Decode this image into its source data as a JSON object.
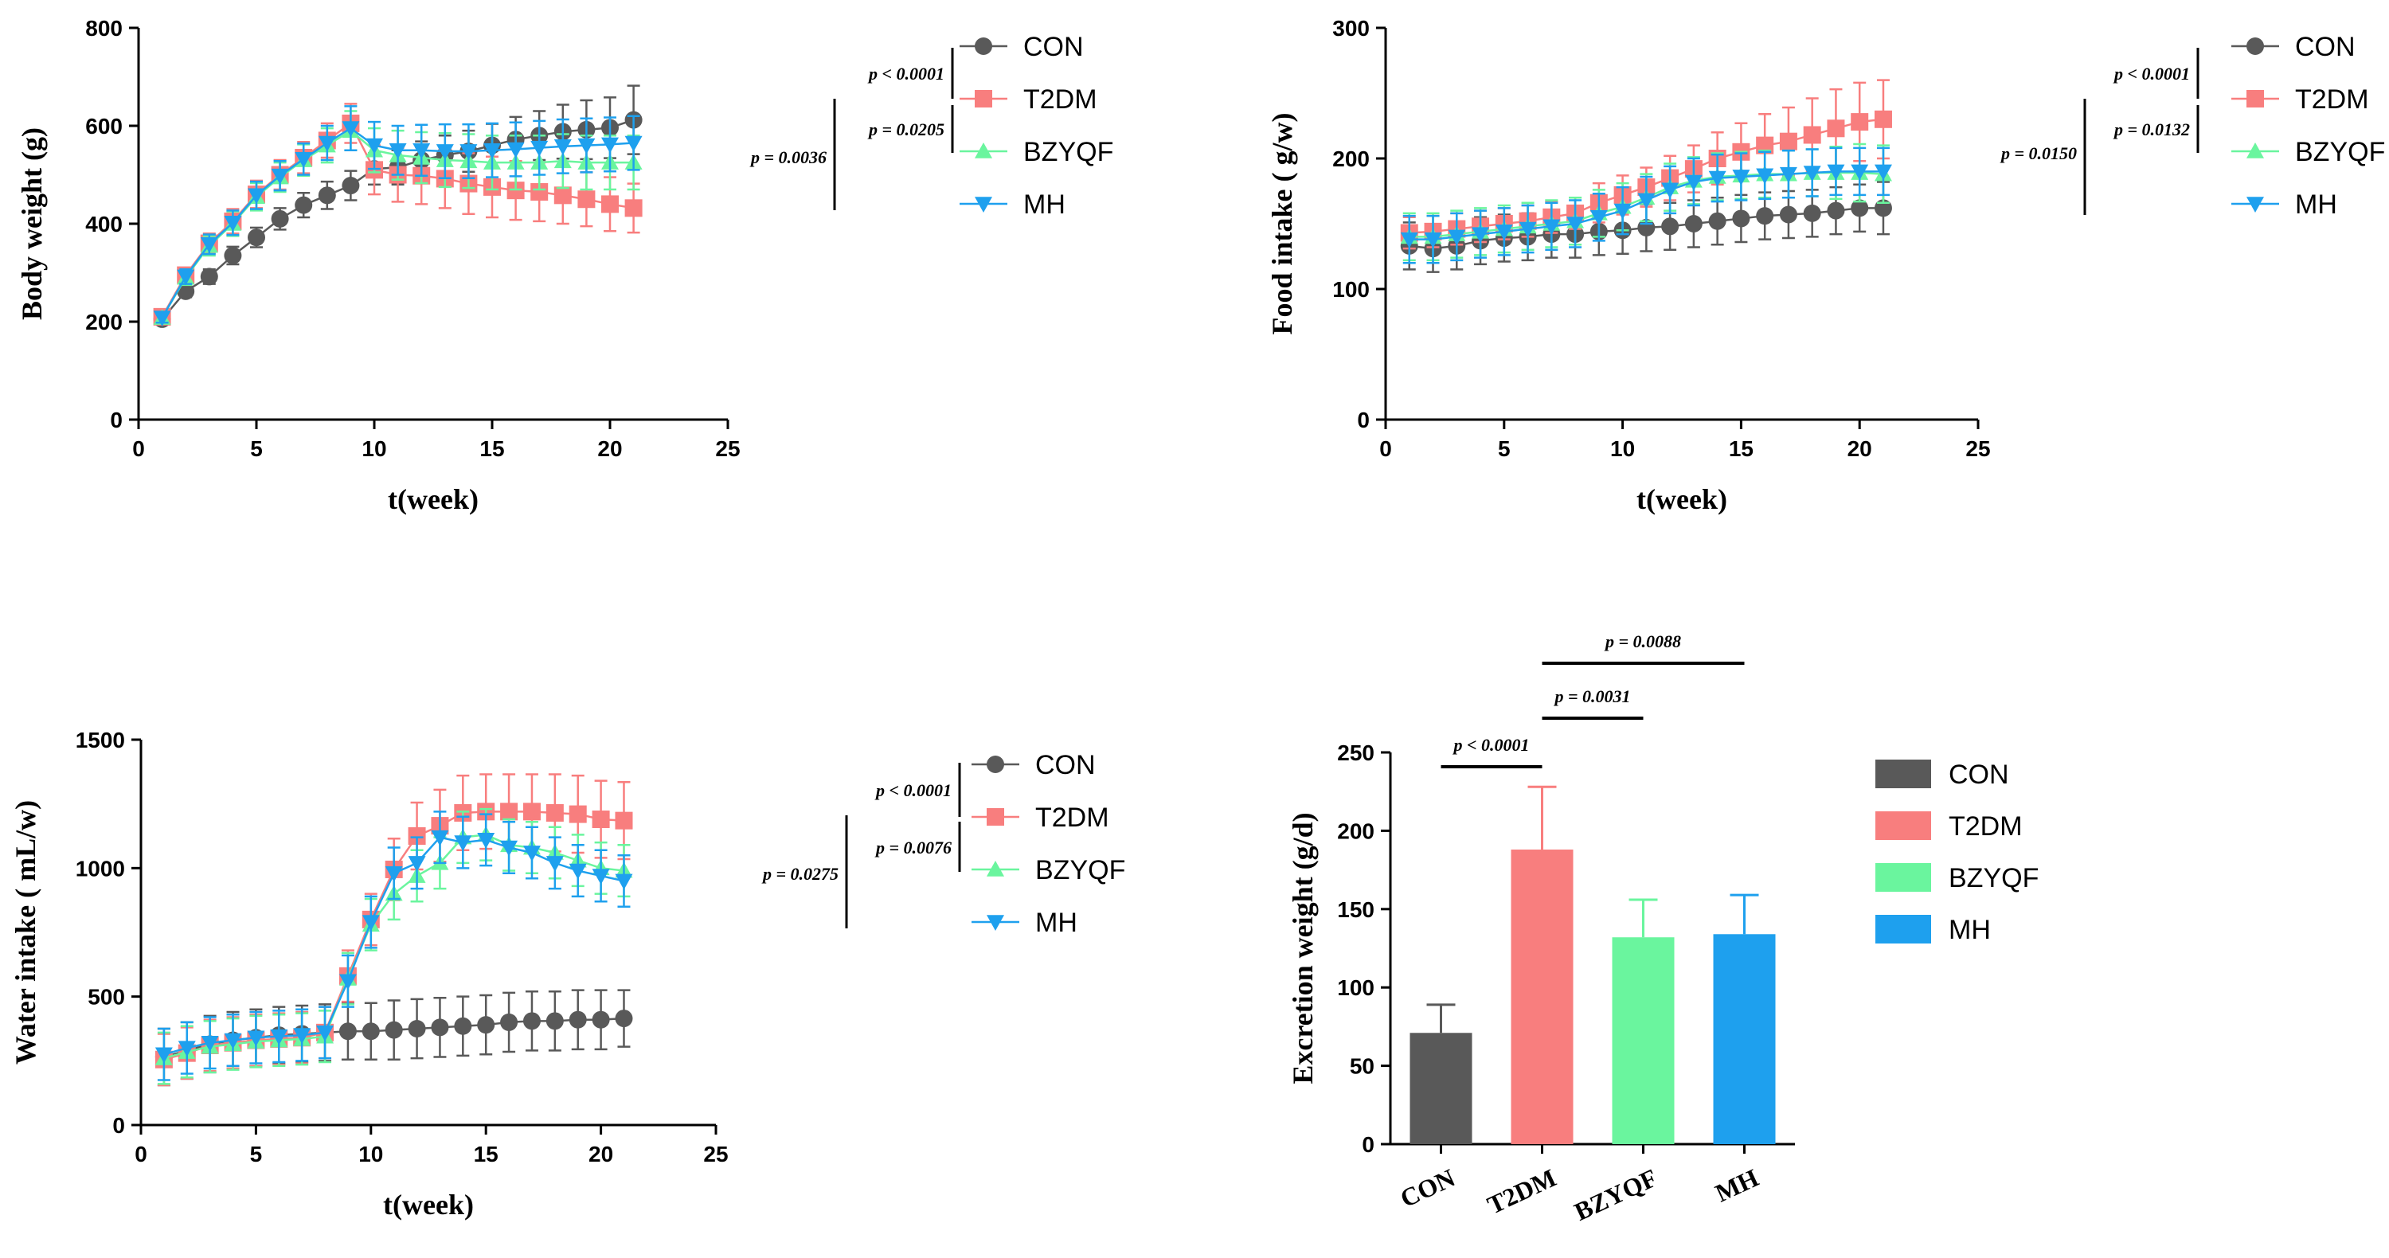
{
  "groups": [
    "CON",
    "T2DM",
    "BZYQF",
    "MH"
  ],
  "colors": {
    "CON": "#595959",
    "T2DM": "#F87E7E",
    "BZYQF": "#6AF59E",
    "MH": "#1EA0EE"
  },
  "chart_data": [
    {
      "id": "body",
      "type": "line",
      "xlabel": "t(week)",
      "ylabel": "Body weight (g)",
      "xlim": [
        0,
        25
      ],
      "ylim": [
        0,
        800
      ],
      "xticks": [
        0,
        5,
        10,
        15,
        20,
        25
      ],
      "yticks": [
        0,
        200,
        400,
        600,
        800
      ],
      "x": [
        1,
        2,
        3,
        4,
        5,
        6,
        7,
        8,
        9,
        10,
        11,
        12,
        13,
        14,
        15,
        16,
        17,
        18,
        19,
        20,
        21
      ],
      "series": [
        {
          "name": "CON",
          "values": [
            205,
            262,
            292,
            335,
            372,
            410,
            438,
            458,
            478,
            512,
            515,
            530,
            540,
            548,
            560,
            572,
            580,
            588,
            592,
            596,
            612
          ],
          "errors": [
            10,
            12,
            15,
            18,
            20,
            22,
            25,
            28,
            30,
            32,
            35,
            38,
            40,
            42,
            44,
            46,
            50,
            55,
            60,
            62,
            70
          ]
        },
        {
          "name": "T2DM",
          "values": [
            210,
            295,
            360,
            405,
            460,
            500,
            535,
            570,
            605,
            510,
            500,
            498,
            492,
            482,
            475,
            468,
            465,
            458,
            450,
            440,
            432
          ],
          "errors": [
            10,
            15,
            20,
            25,
            28,
            30,
            32,
            35,
            40,
            50,
            55,
            58,
            60,
            62,
            62,
            60,
            60,
            58,
            55,
            55,
            50
          ]
        },
        {
          "name": "BZYQF",
          "values": [
            208,
            290,
            355,
            400,
            455,
            495,
            530,
            560,
            590,
            550,
            540,
            535,
            530,
            528,
            525,
            525,
            525,
            528,
            525,
            525,
            525
          ],
          "errors": [
            10,
            15,
            20,
            25,
            28,
            30,
            32,
            35,
            40,
            45,
            50,
            52,
            55,
            55,
            55,
            55,
            55,
            55,
            55,
            55,
            55
          ]
        },
        {
          "name": "MH",
          "values": [
            208,
            292,
            358,
            402,
            458,
            498,
            532,
            565,
            595,
            560,
            550,
            550,
            548,
            548,
            550,
            552,
            555,
            558,
            560,
            562,
            565
          ],
          "errors": [
            10,
            15,
            20,
            25,
            28,
            30,
            32,
            35,
            45,
            48,
            50,
            52,
            55,
            55,
            55,
            55,
            55,
            55,
            55,
            55,
            55
          ]
        }
      ],
      "pvalues": [
        "p < 0.0001",
        "p = 0.0205",
        "p = 0.0036"
      ]
    },
    {
      "id": "food",
      "type": "line",
      "xlabel": "t(week)",
      "ylabel": "Food intake ( g/w)",
      "xlim": [
        0,
        25
      ],
      "ylim": [
        0,
        300
      ],
      "xticks": [
        0,
        5,
        10,
        15,
        20,
        25
      ],
      "yticks": [
        0,
        100,
        200,
        300
      ],
      "x": [
        1,
        2,
        3,
        4,
        5,
        6,
        7,
        8,
        9,
        10,
        11,
        12,
        13,
        14,
        15,
        16,
        17,
        18,
        19,
        20,
        21
      ],
      "series": [
        {
          "name": "CON",
          "values": [
            133,
            131,
            133,
            137,
            139,
            140,
            142,
            142,
            144,
            145,
            147,
            148,
            150,
            152,
            154,
            156,
            157,
            158,
            160,
            162,
            162
          ],
          "errors": [
            18,
            18,
            18,
            18,
            18,
            18,
            18,
            18,
            18,
            18,
            18,
            18,
            18,
            18,
            18,
            18,
            18,
            18,
            18,
            18,
            20
          ]
        },
        {
          "name": "T2DM",
          "values": [
            143,
            144,
            146,
            148,
            150,
            152,
            155,
            158,
            166,
            172,
            178,
            185,
            192,
            200,
            205,
            210,
            213,
            218,
            223,
            228,
            230
          ],
          "errors": [
            12,
            12,
            12,
            12,
            12,
            12,
            12,
            12,
            15,
            15,
            15,
            17,
            18,
            20,
            22,
            24,
            26,
            28,
            30,
            30,
            30
          ]
        },
        {
          "name": "BZYQF",
          "values": [
            140,
            140,
            142,
            144,
            146,
            148,
            150,
            152,
            158,
            163,
            170,
            178,
            183,
            186,
            187,
            188,
            188,
            189,
            189,
            189,
            188
          ],
          "errors": [
            18,
            18,
            18,
            18,
            18,
            18,
            18,
            18,
            18,
            18,
            18,
            18,
            18,
            18,
            18,
            18,
            18,
            18,
            20,
            22,
            22
          ]
        },
        {
          "name": "MH",
          "values": [
            138,
            138,
            140,
            142,
            144,
            146,
            148,
            150,
            155,
            160,
            168,
            176,
            182,
            185,
            186,
            187,
            188,
            189,
            190,
            190,
            190
          ],
          "errors": [
            18,
            18,
            18,
            18,
            18,
            18,
            18,
            18,
            18,
            18,
            18,
            18,
            18,
            18,
            18,
            18,
            18,
            18,
            18,
            18,
            18
          ]
        }
      ],
      "pvalues": [
        "p < 0.0001",
        "p = 0.0132",
        "p = 0.0150"
      ]
    },
    {
      "id": "water",
      "type": "line",
      "xlabel": "t(week)",
      "ylabel": "Water intake ( mL/w)",
      "xlim": [
        0,
        25
      ],
      "ylim": [
        0,
        1500
      ],
      "xticks": [
        0,
        5,
        10,
        15,
        20,
        25
      ],
      "yticks": [
        0,
        500,
        1000,
        1500
      ],
      "x": [
        1,
        2,
        3,
        4,
        5,
        6,
        7,
        8,
        9,
        10,
        11,
        12,
        13,
        14,
        15,
        16,
        17,
        18,
        19,
        20,
        21
      ],
      "series": [
        {
          "name": "CON",
          "values": [
            265,
            290,
            315,
            330,
            340,
            350,
            355,
            360,
            365,
            365,
            370,
            375,
            380,
            385,
            390,
            400,
            405,
            405,
            410,
            410,
            415
          ],
          "errors": [
            110,
            110,
            110,
            110,
            110,
            110,
            110,
            110,
            110,
            110,
            115,
            115,
            115,
            115,
            115,
            115,
            115,
            115,
            115,
            115,
            110
          ]
        },
        {
          "name": "T2DM",
          "values": [
            255,
            280,
            310,
            320,
            330,
            335,
            340,
            360,
            580,
            800,
            995,
            1125,
            1165,
            1215,
            1220,
            1220,
            1220,
            1215,
            1210,
            1190,
            1185
          ],
          "errors": [
            100,
            100,
            100,
            100,
            100,
            100,
            100,
            100,
            100,
            100,
            120,
            130,
            140,
            145,
            145,
            145,
            145,
            150,
            150,
            150,
            150
          ]
        },
        {
          "name": "BZYQF",
          "values": [
            260,
            285,
            305,
            315,
            325,
            330,
            335,
            345,
            570,
            780,
            900,
            970,
            1020,
            1120,
            1130,
            1090,
            1080,
            1060,
            1030,
            1000,
            990
          ],
          "errors": [
            100,
            100,
            100,
            100,
            100,
            100,
            100,
            100,
            100,
            100,
            100,
            100,
            100,
            100,
            100,
            100,
            100,
            100,
            100,
            100,
            100
          ]
        },
        {
          "name": "MH",
          "values": [
            275,
            300,
            320,
            330,
            340,
            345,
            350,
            360,
            560,
            790,
            980,
            1020,
            1120,
            1100,
            1110,
            1080,
            1060,
            1020,
            990,
            970,
            950
          ],
          "errors": [
            100,
            100,
            100,
            100,
            100,
            100,
            100,
            100,
            100,
            100,
            100,
            100,
            100,
            100,
            100,
            100,
            100,
            100,
            100,
            100,
            100
          ]
        }
      ],
      "pvalues": [
        "p < 0.0001",
        "p = 0.0076",
        "p = 0.0275"
      ]
    },
    {
      "id": "excretion",
      "type": "bar",
      "ylabel": "Excretion weight (g/d)",
      "ylim": [
        0,
        250
      ],
      "yticks": [
        0,
        50,
        100,
        150,
        200,
        250
      ],
      "categories": [
        "CON",
        "T2DM",
        "BZYQF",
        "MH"
      ],
      "values": [
        71,
        188,
        132,
        134
      ],
      "errors": [
        18,
        40,
        24,
        25
      ],
      "pvalues": [
        "p < 0.0001",
        "p = 0.0031",
        "p = 0.0088"
      ]
    }
  ]
}
